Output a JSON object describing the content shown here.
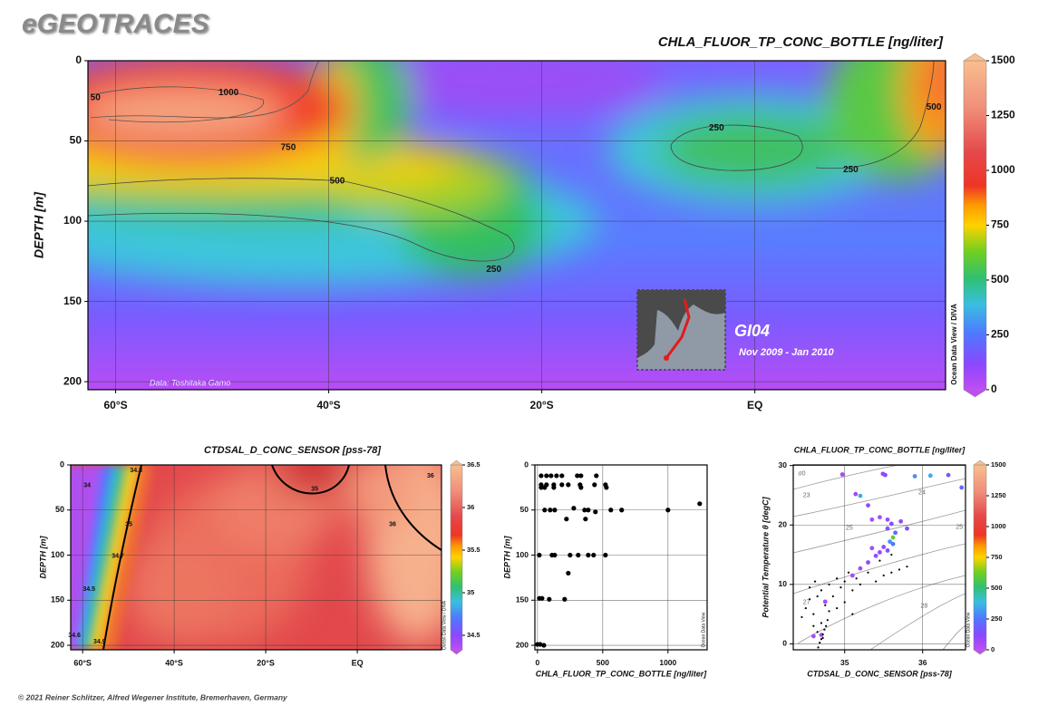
{
  "header": {
    "brand": "eGEOTRACES",
    "footer": "© 2021 Reiner Schlitzer, Alfred Wegener Institute, Bremerhaven, Germany"
  },
  "chart_data": [
    {
      "type": "section",
      "title": "CHLA_FLUOR_TP_CONC_BOTTLE [ng/liter]",
      "ylabel": "DEPTH [m]",
      "xlim": [
        -62.6,
        17.9
      ],
      "xticks": [
        {
          "value": -60,
          "label": "60°S"
        },
        {
          "value": -40,
          "label": "40°S"
        },
        {
          "value": -20,
          "label": "20°S"
        },
        {
          "value": 0,
          "label": "EQ"
        }
      ],
      "ylim": [
        0,
        205
      ],
      "yticks": [
        0,
        50,
        100,
        150,
        200
      ],
      "y_inverted": true,
      "grid": true,
      "colorbar": {
        "lim": [
          0,
          1500
        ],
        "ticks": [
          0,
          250,
          500,
          750,
          1000,
          1250,
          1500
        ]
      },
      "credit": "Ocean Data View / DIVA",
      "contour_labels": [
        {
          "value": 50,
          "x": -61.9,
          "y": 23
        },
        {
          "value": 1000,
          "x": -49.4,
          "y": 20
        },
        {
          "value": 750,
          "x": -43.8,
          "y": 54
        },
        {
          "value": 500,
          "x": -39.2,
          "y": 75
        },
        {
          "value": 250,
          "x": -24.5,
          "y": 130
        },
        {
          "value": 250,
          "x": -3.6,
          "y": 42
        },
        {
          "value": 250,
          "x": 9.0,
          "y": 68
        },
        {
          "value": 500,
          "x": 16.8,
          "y": 29
        }
      ],
      "annotations": [
        "Data: Toshitaka Gamo",
        "GI04",
        "Nov 2009 - Jan 2010"
      ]
    },
    {
      "type": "section",
      "title": "CTDSAL_D_CONC_SENSOR [pss-78]",
      "ylabel": "DEPTH [m]",
      "xlim": [
        -62.6,
        18.4
      ],
      "xticks": [
        {
          "value": -60,
          "label": "60°S"
        },
        {
          "value": -40,
          "label": "40°S"
        },
        {
          "value": -20,
          "label": "20°S"
        },
        {
          "value": 0,
          "label": "EQ"
        }
      ],
      "ylim": [
        0,
        205
      ],
      "yticks": [
        0,
        50,
        100,
        150,
        200
      ],
      "y_inverted": true,
      "grid": true,
      "colorbar": {
        "lim": [
          34.33,
          36.5
        ],
        "ticks": [
          34.5,
          35,
          35.5,
          36,
          36.5
        ]
      },
      "credit": "Ocean Data View / DIVA",
      "contour_labels": [
        {
          "value": 34,
          "x": -59.0,
          "y": 23
        },
        {
          "value": 34.8,
          "x": -48.3,
          "y": 6
        },
        {
          "value": 35,
          "x": -49.9,
          "y": 66
        },
        {
          "value": 34.7,
          "x": -52.3,
          "y": 101
        },
        {
          "value": 34.5,
          "x": -58.6,
          "y": 138
        },
        {
          "value": 34.6,
          "x": -61.8,
          "y": 189
        },
        {
          "value": 34.9,
          "x": -56.3,
          "y": 196
        },
        {
          "value": 35,
          "x": -9.3,
          "y": 27
        },
        {
          "value": 36,
          "x": 7.7,
          "y": 66
        },
        {
          "value": 36,
          "x": 16.0,
          "y": 12
        }
      ]
    },
    {
      "type": "scatter",
      "xlabel": "CHLA_FLUOR_TP_CONC_BOTTLE [ng/liter]",
      "ylabel": "DEPTH [m]",
      "xlim": [
        -20,
        1300
      ],
      "xticks": [
        0,
        500,
        1000
      ],
      "ylim": [
        0,
        205
      ],
      "yticks": [
        0,
        50,
        100,
        150,
        200
      ],
      "y_inverted": true,
      "grid": true,
      "credit": "Ocean Data View",
      "color": "#000000",
      "x": [
        28,
        69,
        104,
        146,
        187,
        305,
        333,
        451,
        28,
        69,
        125,
        187,
        236,
        326,
        437,
        521,
        28,
        55,
        125,
        333,
        528,
        1243,
        55,
        97,
        132,
        278,
        361,
        389,
        444,
        562,
        645,
        1000,
        222,
        368,
        14,
        111,
        132,
        250,
        312,
        389,
        430,
        521,
        236,
        14,
        35,
        90,
        208,
        0,
        21,
        49
      ],
      "values": [
        12,
        12,
        12,
        12,
        12,
        12,
        12,
        12,
        22,
        22,
        22,
        22,
        22,
        22,
        22,
        22,
        25,
        25,
        25,
        25,
        25,
        43,
        50,
        50,
        50,
        48,
        50,
        50,
        52,
        50,
        50,
        50,
        60,
        60,
        100,
        100,
        100,
        100,
        100,
        100,
        100,
        100,
        120,
        148,
        148,
        149,
        149,
        199,
        199,
        200
      ]
    },
    {
      "type": "scatter",
      "title": "CHLA_FLUOR_TP_CONC_BOTTLE [ng/liter]",
      "xlabel": "CTDSAL_D_CONC_SENSOR [pss-78]",
      "ylabel": "Potential Temperature θ [degC]",
      "xlim": [
        34.34,
        36.55
      ],
      "xticks": [
        35,
        36
      ],
      "ylim": [
        -1,
        30.1
      ],
      "yticks": [
        0,
        10,
        20,
        30
      ],
      "grid": true,
      "colorbar": {
        "lim": [
          0,
          1500
        ],
        "ticks": [
          0,
          250,
          500,
          750,
          1000,
          1250,
          1500
        ]
      },
      "credit": "Ocean Data View",
      "contour_labels": [
        {
          "value": "σ0",
          "x": 34.45,
          "y": 28.6
        },
        {
          "value": 23,
          "x": 34.51,
          "y": 25
        },
        {
          "value": 24,
          "x": 35.99,
          "y": 25.4
        },
        {
          "value": 25,
          "x": 35.06,
          "y": 19.5
        },
        {
          "value": 25,
          "x": 36.47,
          "y": 19.6
        },
        {
          "value": 27,
          "x": 34.51,
          "y": 7
        },
        {
          "value": 28,
          "x": 36.02,
          "y": 6.4
        }
      ],
      "series": [
        {
          "x": [
            34.97,
            35.49,
            35.52,
            35.9,
            36.1,
            36.33,
            36.5,
            35.14,
            35.2,
            35.3,
            35.35,
            35.45,
            35.55,
            35.6,
            35.72,
            35.8,
            35.65,
            35.62,
            35.58,
            35.62,
            35.5,
            35.55,
            35.45,
            35.4,
            35.3,
            35.2,
            35.1,
            34.75,
            34.6,
            34.7,
            35.55,
            35.35
          ],
          "values": [
            28.5,
            28.6,
            28.4,
            28.2,
            28.3,
            28.4,
            26.3,
            25.2,
            24.9,
            23.3,
            20.9,
            21.3,
            20.9,
            20.2,
            20.6,
            19.4,
            18.7,
            17.9,
            17.2,
            16.8,
            16.3,
            15.7,
            15.4,
            14.8,
            13.7,
            12.7,
            11.5,
            7.1,
            1.3,
            1.5,
            19.4,
            16.1
          ],
          "color_values": [
            60,
            100,
            120,
            300,
            350,
            150,
            200,
            80,
            350,
            100,
            60,
            50,
            80,
            150,
            90,
            150,
            200,
            600,
            300,
            250,
            100,
            150,
            80,
            100,
            100,
            60,
            50,
            60,
            50,
            40,
            150,
            60
          ]
        },
        {
          "color": "#000000",
          "x": [
            34.45,
            34.5,
            34.55,
            34.6,
            34.65,
            34.7,
            34.75,
            34.8,
            34.85,
            34.9,
            34.95,
            35.0,
            35.05,
            35.1,
            35.15,
            35.2,
            35.3,
            35.4,
            35.5,
            35.6,
            35.7,
            35.8,
            34.6,
            34.65,
            34.7,
            34.72,
            34.78,
            34.8,
            34.9,
            35.0,
            35.1,
            34.55,
            34.62,
            35.45,
            35.6,
            34.66,
            34.68,
            34.7,
            34.72,
            34.74,
            34.76
          ],
          "values": [
            4.5,
            6,
            7.5,
            5,
            8,
            9,
            6.5,
            10,
            8,
            11,
            9.5,
            10.5,
            12,
            9,
            11,
            10,
            12,
            10.5,
            11.5,
            12,
            12.5,
            13,
            3,
            2,
            3.5,
            1,
            4,
            5.5,
            6,
            7,
            5,
            9.5,
            10.5,
            14,
            15,
            -0.6,
            0.2,
            0.8,
            1.6,
            2.4,
            3.0
          ]
        }
      ]
    }
  ]
}
